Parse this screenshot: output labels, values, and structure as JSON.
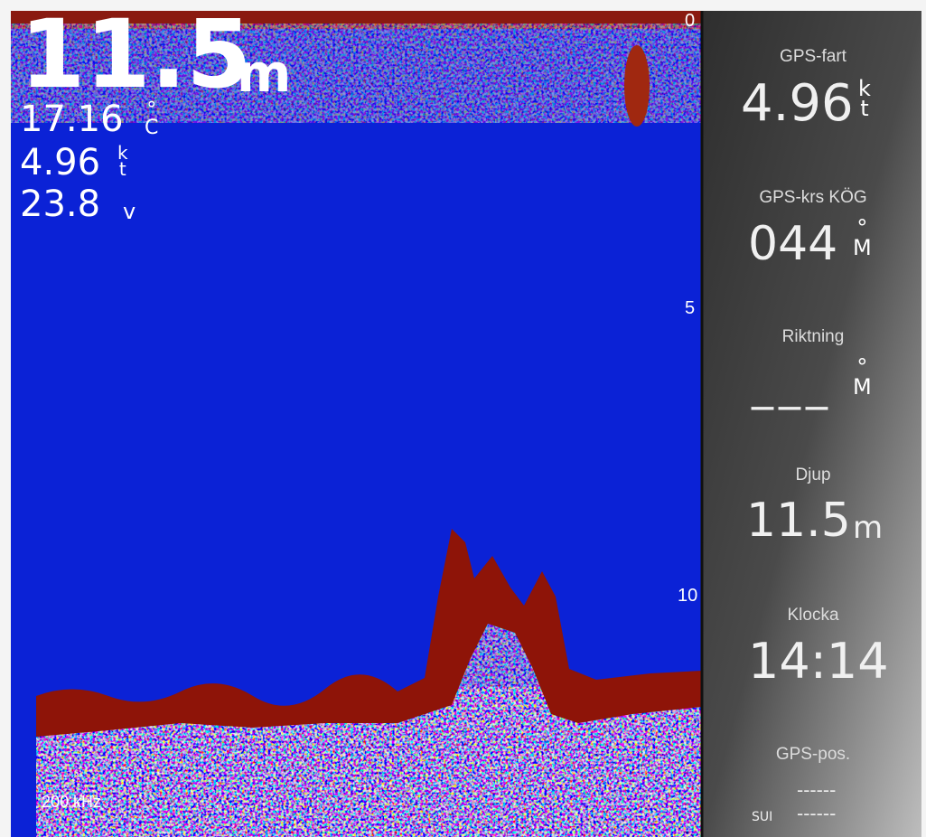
{
  "sonar": {
    "depth": {
      "value": "11.5",
      "unit": "m"
    },
    "temperature": {
      "value": "17.16",
      "unit": [
        "°",
        "C"
      ]
    },
    "speed": {
      "value": "4.96",
      "unit": [
        "k",
        "t"
      ]
    },
    "voltage": {
      "value": "23.8",
      "unit": "v"
    },
    "scale": [
      "0",
      "5",
      "10"
    ],
    "frequency": "200 kHz"
  },
  "panel": {
    "fields": [
      {
        "label": "GPS-fart",
        "value": "4.96",
        "unit": [
          "k",
          "t"
        ]
      },
      {
        "label": "GPS-krs KÖG",
        "value": "044",
        "unit": [
          "°",
          "M"
        ]
      },
      {
        "label": "Riktning",
        "value": "___",
        "unit": [
          "°",
          "M"
        ]
      },
      {
        "label": "Djup",
        "value": "11.5",
        "unit": "m"
      },
      {
        "label": "Klocka",
        "value": "14:14"
      },
      {
        "label": "GPS-pos.",
        "lat": "------",
        "lon_label": "SUI",
        "lon": "------"
      }
    ]
  }
}
